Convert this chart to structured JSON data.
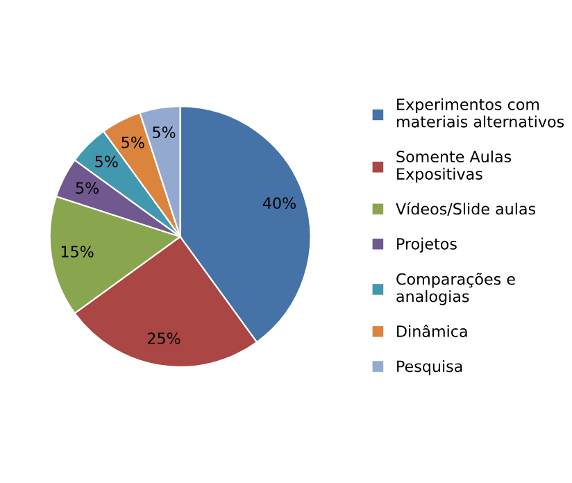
{
  "chart_data": {
    "type": "pie",
    "categories": [
      "Experimentos com materiais alternativos",
      "Somente Aulas Expositivas",
      "Vídeos/Slide aulas",
      "Projetos",
      "Comparações e analogias",
      "Dinâmica",
      "Pesquisa"
    ],
    "values": [
      40,
      25,
      15,
      5,
      5,
      5,
      5
    ],
    "colors": [
      "#4572a7",
      "#aa4643",
      "#89a54e",
      "#71588f",
      "#4198af",
      "#db843d",
      "#93a9cf"
    ],
    "value_labels": [
      "40%",
      "25%",
      "15%",
      "5%",
      "5%",
      "5%",
      "5%"
    ],
    "legend": "right"
  }
}
